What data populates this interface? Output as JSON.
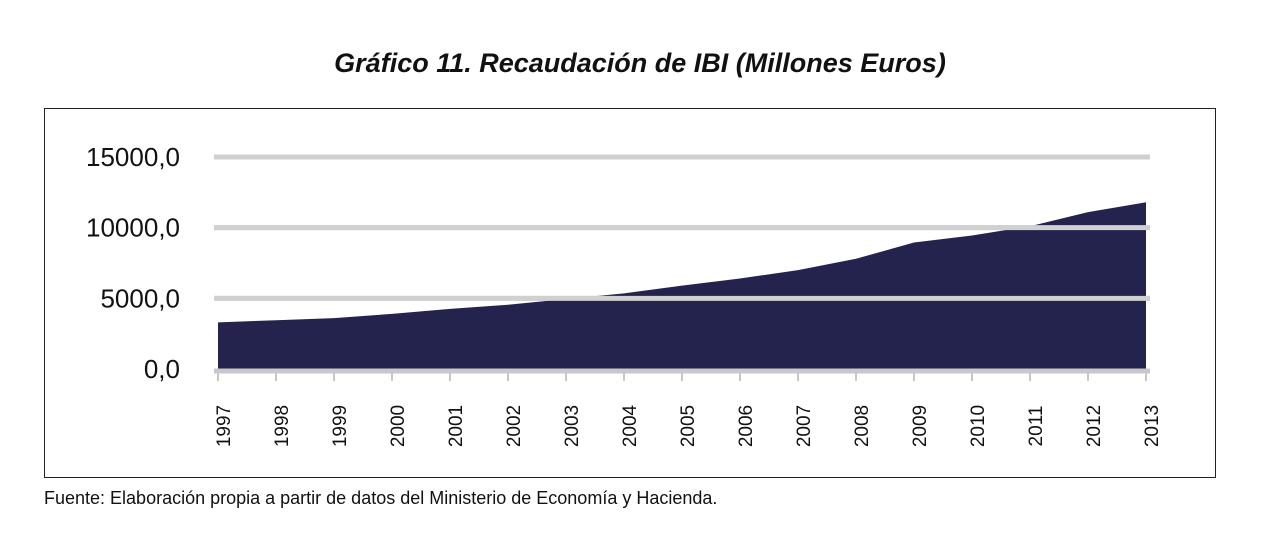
{
  "chart_data": {
    "type": "area",
    "title": "Gráfico 11. Recaudación de IBI (Millones Euros)",
    "xlabel": "",
    "ylabel": "",
    "x": [
      "1997",
      "1998",
      "1999",
      "2000",
      "2001",
      "2002",
      "2003",
      "2004",
      "2005",
      "2006",
      "2007",
      "2008",
      "2009",
      "2010",
      "2011",
      "2012",
      "2013"
    ],
    "values": [
      3300,
      3450,
      3600,
      3900,
      4250,
      4550,
      4950,
      5350,
      5900,
      6400,
      7000,
      7800,
      8950,
      9450,
      10100,
      11100,
      11800
    ],
    "ylim": [
      0,
      15000
    ],
    "yticks": [
      "0,0",
      "5000,0",
      "10000,0",
      "15000,0"
    ],
    "ytick_values": [
      0,
      5000,
      10000,
      15000
    ],
    "grid": true,
    "colors": {
      "area": "#23234d",
      "grid": "#d0d0d0",
      "axis": "#c8c8c8"
    }
  },
  "source_note": "Fuente: Elaboración propia a partir de datos del Ministerio de Economía y Hacienda."
}
